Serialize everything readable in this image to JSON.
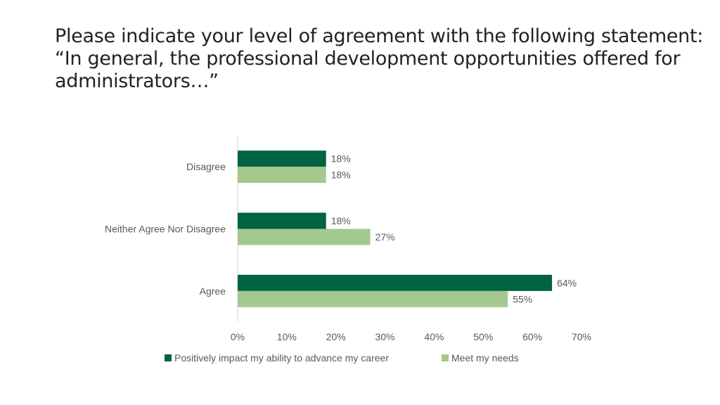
{
  "title_lines": [
    "Please indicate your level of agreement with the following statement:",
    "“In general, the professional development opportunities offered for",
    "administrators…”"
  ],
  "chart_data": {
    "type": "bar",
    "orientation": "horizontal",
    "categories": [
      "Disagree",
      "Neither Agree Nor Disagree",
      "Agree"
    ],
    "series": [
      {
        "name": "Positively impact my ability to advance my career",
        "values": [
          18,
          18,
          64
        ],
        "labels": [
          "18%",
          "18%",
          "64%"
        ],
        "color": "#006341"
      },
      {
        "name": "Meet my needs",
        "values": [
          18,
          27,
          55
        ],
        "labels": [
          "18%",
          "27%",
          "55%"
        ],
        "color": "#a3c98f"
      }
    ],
    "xlim": [
      0,
      70
    ],
    "x_ticks": [
      "0%",
      "10%",
      "20%",
      "30%",
      "40%",
      "50%",
      "60%",
      "70%"
    ],
    "x_tick_values": [
      0,
      10,
      20,
      30,
      40,
      50,
      60,
      70
    ],
    "grid": false,
    "legend_position": "bottom"
  }
}
